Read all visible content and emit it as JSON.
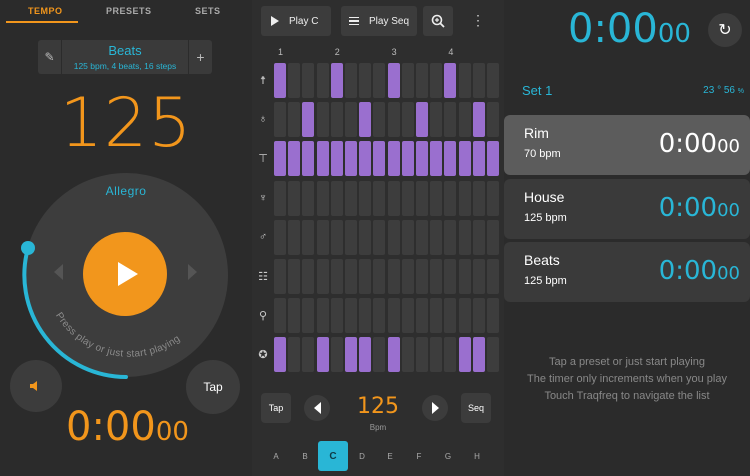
{
  "tabs": [
    "TEMPO",
    "PRESETS",
    "SETS"
  ],
  "preset": {
    "name": "Beats",
    "description": "125 bpm, 4 beats, 16 steps",
    "edit_icon": "pencil-icon",
    "add_icon": "plus-icon"
  },
  "tempo": {
    "bpm": "125",
    "marking": "Allegro",
    "hint": "Press play or just start playing"
  },
  "controls": {
    "tap_label": "Tap",
    "mute_icon": "speaker-icon",
    "play_icon": "play-icon"
  },
  "timer_left": {
    "main": "0:00",
    "frac": "00"
  },
  "toolbar": {
    "play_c_label": "Play C",
    "play_seq_label": "Play Seq",
    "zoom_icon": "zoom-icon",
    "menu_icon": "more-vert-icon"
  },
  "sequencer": {
    "beat_numbers": [
      "1",
      "2",
      "3",
      "4"
    ],
    "rows": [
      {
        "icon": "hihat-open-icon",
        "glyph": "☨",
        "steps": [
          1,
          0,
          0,
          0,
          1,
          0,
          0,
          0,
          1,
          0,
          0,
          0,
          1,
          0,
          0,
          0
        ]
      },
      {
        "icon": "ride-icon",
        "glyph": "♁",
        "steps": [
          0,
          0,
          1,
          0,
          0,
          0,
          1,
          0,
          0,
          0,
          1,
          0,
          0,
          0,
          1,
          0
        ]
      },
      {
        "icon": "hihat-closed-icon",
        "glyph": "⊤",
        "steps": [
          1,
          1,
          1,
          1,
          1,
          1,
          1,
          1,
          1,
          1,
          1,
          1,
          1,
          1,
          1,
          1
        ]
      },
      {
        "icon": "snare-icon",
        "glyph": "♆",
        "steps": [
          0,
          0,
          0,
          0,
          0,
          0,
          0,
          0,
          0,
          0,
          0,
          0,
          0,
          0,
          0,
          0
        ]
      },
      {
        "icon": "tom-icon",
        "glyph": "♂",
        "steps": [
          0,
          0,
          0,
          0,
          0,
          0,
          0,
          0,
          0,
          0,
          0,
          0,
          0,
          0,
          0,
          0
        ]
      },
      {
        "icon": "floor-tom-icon",
        "glyph": "☷",
        "steps": [
          0,
          0,
          0,
          0,
          0,
          0,
          0,
          0,
          0,
          0,
          0,
          0,
          0,
          0,
          0,
          0
        ]
      },
      {
        "icon": "cymbal-icon",
        "glyph": "⚲",
        "steps": [
          0,
          0,
          0,
          0,
          0,
          0,
          0,
          0,
          0,
          0,
          0,
          0,
          0,
          0,
          0,
          0
        ]
      },
      {
        "icon": "kick-icon",
        "glyph": "✪",
        "steps": [
          1,
          0,
          0,
          1,
          0,
          1,
          1,
          0,
          1,
          0,
          0,
          0,
          0,
          1,
          1,
          0
        ]
      }
    ]
  },
  "bottom_controls": {
    "tap_label": "Tap",
    "seq_label": "Seq",
    "bpm": "125",
    "bpm_label": "Bpm"
  },
  "keys": [
    "A",
    "B",
    "C",
    "D",
    "E",
    "F",
    "G",
    "H"
  ],
  "selected_key": "C",
  "timer_right": {
    "main": "0:00",
    "frac": "00"
  },
  "set": {
    "name": "Set 1",
    "stats": "23 ° 56",
    "pct": "%"
  },
  "presets": [
    {
      "name": "Rim",
      "bpm": "70 bpm",
      "time_main": "0:00",
      "time_frac": "00",
      "selected": true
    },
    {
      "name": "House",
      "bpm": "125 bpm",
      "time_main": "0:00",
      "time_frac": "00",
      "selected": false
    },
    {
      "name": "Beats",
      "bpm": "125 bpm",
      "time_main": "0:00",
      "time_frac": "00",
      "selected": false
    }
  ],
  "hints": [
    "Tap a preset or just start playing",
    "The timer only increments when you play",
    "Touch Traqfreq to navigate the list"
  ],
  "colors": {
    "accent_orange": "#f2961c",
    "accent_cyan": "#29b6d6",
    "step_on": "#9a6fcf",
    "step_off": "#3d3d3d"
  }
}
